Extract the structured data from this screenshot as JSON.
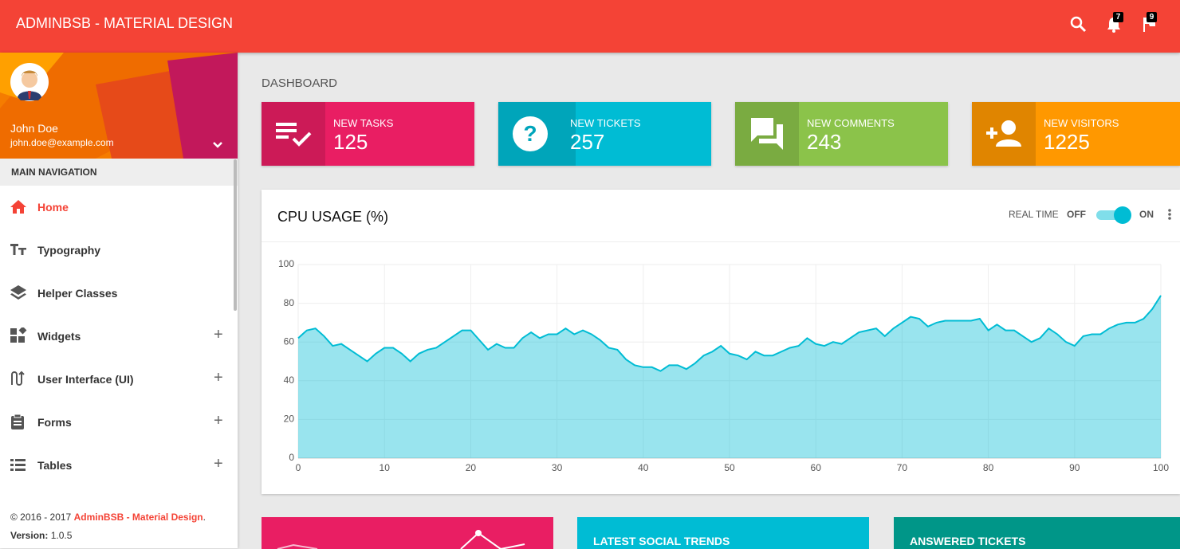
{
  "header": {
    "brand": "ADMINBSB - MATERIAL DESIGN",
    "badges": [
      7,
      9
    ]
  },
  "user": {
    "name": "John Doe",
    "email": "john.doe@example.com"
  },
  "navigation": {
    "heading": "MAIN NAVIGATION",
    "items": [
      "Home",
      "Typography",
      "Helper Classes",
      "Widgets",
      "User Interface (UI)",
      "Forms",
      "Tables"
    ]
  },
  "footer": {
    "copyright": "© 2016 - 2017",
    "brand": "AdminBSB - Material Design",
    "period": ".",
    "version_label": "Version:",
    "version": "1.0.5"
  },
  "page_title": "DASHBOARD",
  "info_boxes": [
    {
      "label": "NEW TASKS",
      "value": 125
    },
    {
      "label": "NEW TICKETS",
      "value": 257
    },
    {
      "label": "NEW COMMENTS",
      "value": 243
    },
    {
      "label": "NEW VISITORS",
      "value": 1225
    }
  ],
  "chart_controls": {
    "label": "REAL TIME",
    "off": "OFF",
    "on": "ON"
  },
  "chart_data": {
    "type": "area",
    "title": "CPU USAGE (%)",
    "color": "#00bcd4",
    "x": [
      0,
      1,
      2,
      3,
      4,
      5,
      6,
      7,
      8,
      9,
      10,
      11,
      12,
      13,
      14,
      15,
      16,
      17,
      18,
      19,
      20,
      21,
      22,
      23,
      24,
      25,
      26,
      27,
      28,
      29,
      30,
      31,
      32,
      33,
      34,
      35,
      36,
      37,
      38,
      39,
      40,
      41,
      42,
      43,
      44,
      45,
      46,
      47,
      48,
      49,
      50,
      51,
      52,
      53,
      54,
      55,
      56,
      57,
      58,
      59,
      60,
      61,
      62,
      63,
      64,
      65,
      66,
      67,
      68,
      69,
      70,
      71,
      72,
      73,
      74,
      75,
      76,
      77,
      78,
      79,
      80,
      81,
      82,
      83,
      84,
      85,
      86,
      87,
      88,
      89,
      90,
      91,
      92,
      93,
      94,
      95,
      96,
      97,
      98,
      99,
      100
    ],
    "values": [
      62,
      66,
      67,
      63,
      58,
      59,
      56,
      53,
      50,
      54,
      57,
      57,
      54,
      50,
      54,
      56,
      57,
      60,
      63,
      66,
      66,
      61,
      56,
      59,
      57,
      57,
      62,
      65,
      62,
      64,
      64,
      67,
      64,
      66,
      64,
      61,
      57,
      56,
      51,
      48,
      47,
      47,
      45,
      48,
      48,
      46,
      49,
      53,
      55,
      58,
      54,
      53,
      51,
      55,
      53,
      53,
      55,
      57,
      58,
      62,
      59,
      58,
      60,
      59,
      62,
      65,
      66,
      67,
      63,
      67,
      70,
      73,
      72,
      68,
      70,
      71,
      71,
      71,
      71,
      72,
      66,
      69,
      66,
      66,
      63,
      60,
      62,
      67,
      64,
      60,
      58,
      63,
      64,
      64,
      67,
      69,
      70,
      70,
      72,
      77,
      84
    ],
    "xlim": [
      0,
      100
    ],
    "ylim": [
      0,
      100
    ],
    "xticks": [
      0,
      10,
      20,
      30,
      40,
      50,
      60,
      70,
      80,
      90,
      100
    ],
    "yticks": [
      0,
      20,
      40,
      60,
      80,
      100
    ],
    "grid": true
  },
  "bottom_cards": [
    "LATEST SOCIAL TRENDS",
    "ANSWERED TICKETS"
  ]
}
